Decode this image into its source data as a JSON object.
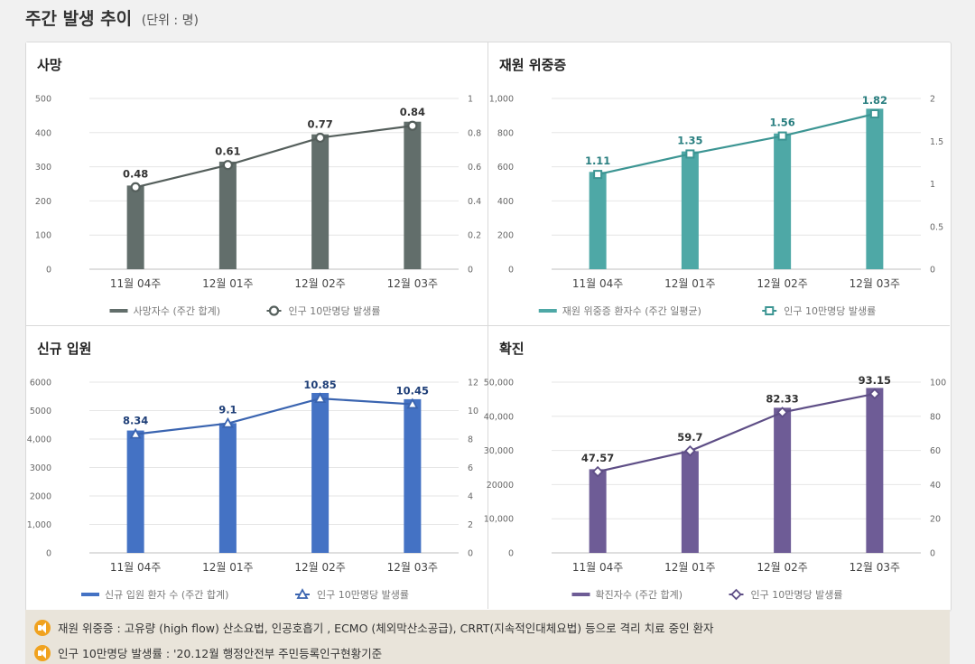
{
  "page": {
    "title": "주간 발생 추이",
    "unit": "(단위 : 명)"
  },
  "notes": [
    "재원 위중증 : 고유량 (high flow) 산소요법, 인공호흡기 , ECMO (체외막산소공급), CRRT(지속적인대체요법) 등으로 격리 치료 중인 환자",
    "인구 10만명당 발생률 : '20.12월 행정안전부 주민등록인구현황기준"
  ],
  "chart_data": [
    {
      "title": "사망",
      "type": "bar",
      "categories": [
        "11월 04주",
        "12월 01주",
        "12월 02주",
        "12월 03주"
      ],
      "series": [
        {
          "name": "사망자수 (주간 합계)",
          "values": [
            245,
            315,
            395,
            432
          ],
          "axis": "left"
        },
        {
          "name": "인구 10만명당 발생률",
          "type": "line",
          "values": [
            0.48,
            0.61,
            0.77,
            0.84
          ],
          "axis": "right",
          "marker": "circle"
        }
      ],
      "y_left": {
        "min": 0,
        "max": 500,
        "ticks": [
          "0",
          "100",
          "200",
          "300",
          "400",
          "500"
        ]
      },
      "y_right": {
        "min": 0,
        "max": 1,
        "ticks": [
          "0",
          "0.2",
          "0.4",
          "0.6",
          "0.8",
          "1"
        ]
      },
      "colors": {
        "bar": "#626e6b",
        "line": "#555f5c",
        "label": "#333333"
      }
    },
    {
      "title": "재원 위중증",
      "type": "bar",
      "categories": [
        "11월 04주",
        "12월 01주",
        "12월 02주",
        "12월 03주"
      ],
      "series": [
        {
          "name": "재원 위중증 환자수 (주간 일평균)",
          "values": [
            570,
            690,
            795,
            940
          ],
          "axis": "left"
        },
        {
          "name": "인구 10만명당 발생률",
          "type": "line",
          "values": [
            1.11,
            1.35,
            1.56,
            1.82
          ],
          "axis": "right",
          "marker": "square"
        }
      ],
      "y_left": {
        "min": 0,
        "max": 1000,
        "ticks": [
          "0",
          "200",
          "400",
          "600",
          "800",
          "1,000"
        ]
      },
      "y_right": {
        "min": 0,
        "max": 2,
        "ticks": [
          "0",
          "0.5",
          "1",
          "1.5",
          "2"
        ]
      },
      "colors": {
        "bar": "#4ea8a6",
        "line": "#3c9593",
        "label": "#2a7f80"
      }
    },
    {
      "title": "신규 입원",
      "type": "bar",
      "categories": [
        "11월 04주",
        "12월 01주",
        "12월 02주",
        "12월 03주"
      ],
      "series": [
        {
          "name": "신규 입원 환자 수 (주간 합계)",
          "values": [
            4300,
            4560,
            5620,
            5400
          ],
          "axis": "left"
        },
        {
          "name": "인구 10만명당 발생률",
          "type": "line",
          "values": [
            8.34,
            9.1,
            10.85,
            10.45
          ],
          "axis": "right",
          "marker": "triangle"
        }
      ],
      "y_left": {
        "min": 0,
        "max": 6000,
        "ticks": [
          "0",
          "1,000",
          "2000",
          "3000",
          "4,000",
          "5000",
          "6000"
        ]
      },
      "y_right": {
        "min": 0,
        "max": 12,
        "ticks": [
          "0",
          "2",
          "4",
          "6",
          "8",
          "10",
          "12"
        ]
      },
      "colors": {
        "bar": "#4472c4",
        "line": "#3a64b0",
        "label": "#1f3f78"
      }
    },
    {
      "title": "확진",
      "type": "bar",
      "categories": [
        "11월 04주",
        "12월 01주",
        "12월 02주",
        "12월 03주"
      ],
      "series": [
        {
          "name": "확진자수 (주간 합계)",
          "values": [
            24500,
            29800,
            42500,
            48300
          ],
          "axis": "left"
        },
        {
          "name": "인구 10만명당 발생률",
          "type": "line",
          "values": [
            47.57,
            59.7,
            82.33,
            93.15
          ],
          "axis": "right",
          "marker": "diamond"
        }
      ],
      "y_left": {
        "min": 0,
        "max": 50000,
        "ticks": [
          "0",
          "10,000",
          "20000",
          "30,000",
          "40,000",
          "50,000"
        ]
      },
      "y_right": {
        "min": 0,
        "max": 100,
        "ticks": [
          "0",
          "20",
          "40",
          "60",
          "80",
          "100"
        ]
      },
      "colors": {
        "bar": "#6e5c96",
        "line": "#5e4e86",
        "label": "#333333"
      }
    }
  ]
}
